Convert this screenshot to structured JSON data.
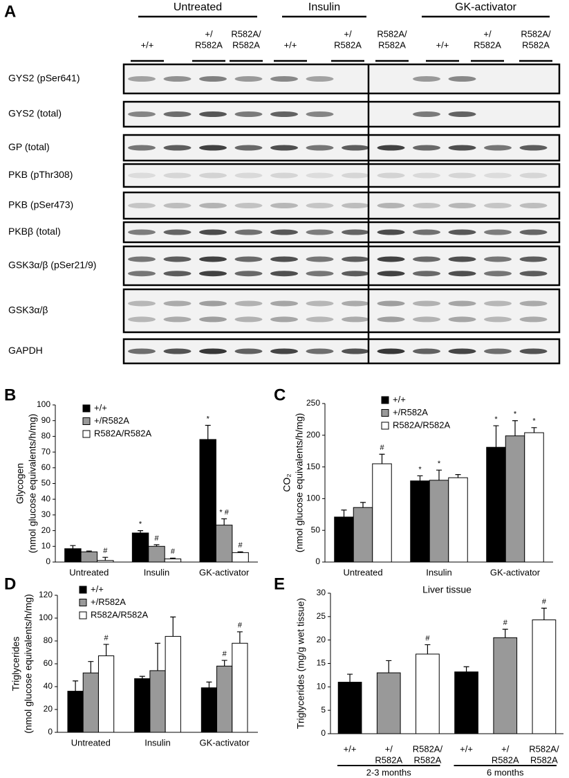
{
  "blot": {
    "panel": "A",
    "groups": [
      {
        "label": "Untreated",
        "lanes": [
          [
            "+/+"
          ],
          [
            "+/",
            "R582A"
          ],
          [
            "R582A/",
            "R582A"
          ]
        ]
      },
      {
        "label": "Insulin",
        "lanes": [
          [
            "+/+"
          ],
          [
            "+/",
            "R582A"
          ],
          [
            "R582A/",
            "R582A"
          ]
        ]
      },
      {
        "label": "GK-activator",
        "lanes": [
          [
            "+/+"
          ],
          [
            "+/",
            "R582A"
          ],
          [
            "R582A/",
            "R582A"
          ]
        ]
      }
    ],
    "rows": [
      "GYS2 (pSer641)",
      "GYS2 (total)",
      "GP (total)",
      "PKB (pThr308)",
      "PKB (pSer473)",
      "PKBβ (total)",
      "GSK3α/β (pSer21/9)",
      "GSK3α/β",
      "GAPDH"
    ]
  },
  "chart_data": [
    {
      "type": "bar",
      "panel": "B",
      "ylabel": [
        "Glycogen",
        "(nmol glucose equivalents/h/mg)"
      ],
      "categories": [
        "Untreated",
        "Insulin",
        "GK-activator"
      ],
      "series": [
        {
          "name": "+/+",
          "color": "#000000",
          "values": [
            8.5,
            18.5,
            78
          ],
          "errors": [
            2,
            1.5,
            9
          ],
          "annotations": [
            null,
            "*",
            "*"
          ]
        },
        {
          "name": "+/R582A",
          "color": "#999999",
          "values": [
            6.5,
            10,
            23.5
          ],
          "errors": [
            0.5,
            1,
            4
          ],
          "annotations": [
            null,
            "#",
            "* #"
          ]
        },
        {
          "name": "R582A/R582A",
          "color": "#ffffff",
          "values": [
            1,
            2,
            6
          ],
          "errors": [
            2,
            0.5,
            0.5
          ],
          "annotations": [
            "#",
            "#",
            "#"
          ]
        }
      ],
      "ylim": [
        0,
        100
      ],
      "yticks": [
        0,
        10,
        20,
        30,
        40,
        50,
        60,
        70,
        80,
        90,
        100
      ]
    },
    {
      "type": "bar",
      "panel": "C",
      "ylabel": [
        "CO₂",
        "(nmol glucose equivalents/h/mg)"
      ],
      "categories": [
        "Untreated",
        "Insulin",
        "GK-activator"
      ],
      "series": [
        {
          "name": "+/+",
          "color": "#000000",
          "values": [
            71,
            128,
            181
          ],
          "errors": [
            11,
            8,
            34
          ],
          "annotations": [
            null,
            "*",
            "*"
          ]
        },
        {
          "name": "+/R582A",
          "color": "#999999",
          "values": [
            86,
            129,
            199
          ],
          "errors": [
            8,
            16,
            24
          ],
          "annotations": [
            null,
            "*",
            "*"
          ]
        },
        {
          "name": "R582A/R582A",
          "color": "#ffffff",
          "values": [
            155,
            133,
            204
          ],
          "errors": [
            15,
            5,
            8
          ],
          "annotations": [
            "#",
            null,
            "*"
          ]
        }
      ],
      "ylim": [
        0,
        250
      ],
      "yticks": [
        0,
        50,
        100,
        150,
        200,
        250
      ]
    },
    {
      "type": "bar",
      "panel": "D",
      "ylabel": [
        "Triglycerides",
        "(nmol glucose equivalents/h/mg)"
      ],
      "categories": [
        "Untreated",
        "Insulin",
        "GK-activator"
      ],
      "series": [
        {
          "name": "+/+",
          "color": "#000000",
          "values": [
            36,
            47,
            39
          ],
          "errors": [
            9,
            2,
            5
          ],
          "annotations": [
            null,
            null,
            null
          ]
        },
        {
          "name": "+/R582A",
          "color": "#999999",
          "values": [
            52,
            54,
            58
          ],
          "errors": [
            10,
            24,
            5
          ],
          "annotations": [
            null,
            null,
            "#"
          ]
        },
        {
          "name": "R582A/R582A",
          "color": "#ffffff",
          "values": [
            67,
            84,
            78
          ],
          "errors": [
            10,
            17,
            10
          ],
          "annotations": [
            "#",
            null,
            "#"
          ]
        }
      ],
      "ylim": [
        0,
        120
      ],
      "yticks": [
        0,
        20,
        40,
        60,
        80,
        100,
        120
      ]
    },
    {
      "type": "bar",
      "panel": "E",
      "title": "Liver tissue",
      "ylabel": [
        "Triglycerides (mg/g wet tissue)"
      ],
      "categories": [
        [
          "+/+"
        ],
        [
          "+/",
          "R582A"
        ],
        [
          "R582A/",
          "R582A"
        ],
        [
          "+/+"
        ],
        [
          "+/",
          "R582A"
        ],
        [
          "R582A/",
          "R582A"
        ]
      ],
      "group_labels": [
        "2-3 months",
        "6 months"
      ],
      "values": [
        11,
        13,
        17,
        13.2,
        20.5,
        24.3
      ],
      "errors": [
        1.7,
        2.6,
        2,
        1.1,
        1.8,
        2.5
      ],
      "colors": [
        "#000000",
        "#999999",
        "#ffffff",
        "#000000",
        "#999999",
        "#ffffff"
      ],
      "annotations": [
        null,
        null,
        "#",
        null,
        "#",
        "#"
      ],
      "ylim": [
        0,
        30
      ],
      "yticks": [
        0,
        5,
        10,
        15,
        20,
        25,
        30
      ]
    }
  ]
}
